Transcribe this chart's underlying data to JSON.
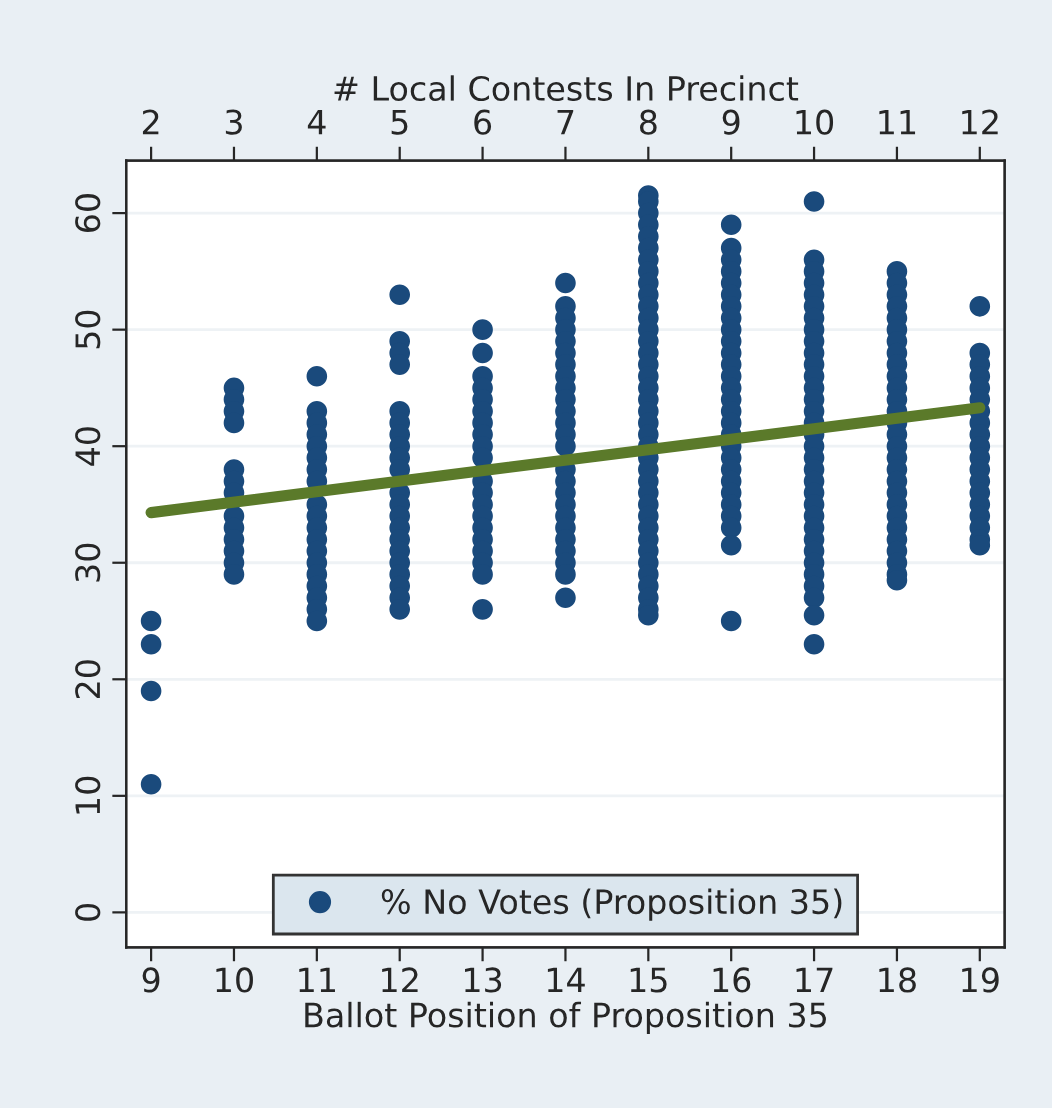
{
  "chart_data": {
    "type": "scatter",
    "xlabel": "Ballot Position of Proposition 35",
    "x2label": "# Local Contests In Precinct",
    "xlim": [
      8.7,
      19.3
    ],
    "xticks": [
      9,
      10,
      11,
      12,
      13,
      14,
      15,
      16,
      17,
      18,
      19
    ],
    "x2lim": [
      1.7,
      12.3
    ],
    "x2ticks": [
      2,
      3,
      4,
      5,
      6,
      7,
      8,
      9,
      10,
      11,
      12
    ],
    "ylim": [
      -3,
      64.5
    ],
    "yticks": [
      0,
      10,
      20,
      30,
      40,
      50,
      60
    ],
    "grid": "y",
    "legend": "bottom",
    "series": [
      {
        "name": "% No Votes (Proposition 35)",
        "marker": "circle",
        "color": "#1a4a7c",
        "x": [
          9,
          9,
          9,
          9,
          10,
          10,
          10,
          10,
          10,
          10,
          10,
          10,
          10,
          10,
          10,
          10,
          10,
          11,
          11,
          11,
          11,
          11,
          11,
          11,
          11,
          11,
          11,
          11,
          11,
          11,
          11,
          11,
          11,
          11,
          11,
          11,
          12,
          12,
          12,
          12,
          12,
          12,
          12,
          12,
          12,
          12,
          12,
          12,
          12,
          12,
          12,
          12,
          12,
          12,
          12,
          12,
          12,
          13,
          13,
          13,
          13,
          13,
          13,
          13,
          13,
          13,
          13,
          13,
          13,
          13,
          13,
          13,
          13,
          13,
          13,
          13,
          13,
          14,
          14,
          14,
          14,
          14,
          14,
          14,
          14,
          14,
          14,
          14,
          14,
          14,
          14,
          14,
          14,
          14,
          14,
          14,
          14,
          14,
          14,
          14,
          14,
          14,
          15,
          15,
          15,
          15,
          15,
          15,
          15,
          15,
          15,
          15,
          15,
          15,
          15,
          15,
          15,
          15,
          15,
          15,
          15,
          15,
          15,
          15,
          15,
          15,
          15,
          15,
          15,
          15,
          15,
          15,
          15,
          15,
          15,
          15,
          15,
          15,
          15,
          15,
          16,
          16,
          16,
          16,
          16,
          16,
          16,
          16,
          16,
          16,
          16,
          16,
          16,
          16,
          16,
          16,
          16,
          16,
          16,
          16,
          16,
          16,
          16,
          16,
          16,
          16,
          16,
          16,
          17,
          17,
          17,
          17,
          17,
          17,
          17,
          17,
          17,
          17,
          17,
          17,
          17,
          17,
          17,
          17,
          17,
          17,
          17,
          17,
          17,
          17,
          17,
          17,
          17,
          17,
          17,
          17,
          17,
          17,
          17,
          17,
          17,
          18,
          18,
          18,
          18,
          18,
          18,
          18,
          18,
          18,
          18,
          18,
          18,
          18,
          18,
          18,
          18,
          18,
          18,
          18,
          18,
          18,
          18,
          18,
          18,
          18,
          18,
          18,
          18,
          19,
          19,
          19,
          19,
          19,
          19,
          19,
          19,
          19,
          19,
          19,
          19,
          19,
          19,
          19,
          19,
          19,
          19,
          19
        ],
        "values": [
          25,
          23,
          19,
          11,
          45,
          44,
          43,
          42,
          38,
          37,
          36,
          34,
          33,
          32,
          31,
          30,
          29,
          46,
          43,
          42,
          41,
          40,
          39,
          38,
          37,
          35,
          34,
          33,
          32,
          31,
          30,
          29,
          28,
          27,
          26,
          25,
          53,
          49,
          48,
          47,
          43,
          42,
          41,
          40,
          39,
          38,
          36,
          35,
          34,
          33,
          32,
          31,
          30,
          29,
          28,
          27,
          26,
          50,
          48,
          46,
          45,
          44,
          43,
          42,
          41,
          40,
          39,
          37,
          36,
          35,
          34,
          33,
          32,
          31,
          30,
          29,
          26,
          54,
          52,
          51,
          50,
          49,
          48,
          47,
          46,
          45,
          44,
          43,
          42,
          41,
          40,
          38,
          37,
          36,
          35,
          34,
          33,
          32,
          31,
          30,
          29,
          27,
          61.5,
          61,
          60,
          59,
          58,
          57,
          56,
          55,
          54,
          53,
          52,
          51,
          50,
          49,
          48,
          47,
          46,
          45,
          44,
          43,
          42,
          41,
          40,
          39,
          38,
          37,
          36,
          35,
          34,
          33,
          32,
          31,
          30,
          29,
          28,
          27,
          26,
          25.5,
          59,
          57,
          56,
          55,
          54,
          53,
          52,
          51,
          50,
          49,
          48,
          47,
          46,
          45,
          44,
          43,
          42,
          41,
          40,
          39,
          38,
          37,
          36,
          35,
          34,
          33,
          31.5,
          25,
          61,
          56,
          55,
          54,
          53,
          52,
          51,
          50,
          49,
          48,
          47,
          46,
          45,
          44,
          43,
          42,
          41,
          40,
          39,
          38,
          37,
          36,
          35,
          34,
          33,
          32,
          31,
          30,
          29,
          28,
          27,
          25.5,
          23,
          55,
          54,
          53,
          52,
          51,
          50,
          49,
          48,
          47,
          46,
          45,
          44,
          43,
          42,
          41,
          40,
          39,
          38,
          37,
          36,
          35,
          34,
          33,
          32,
          31,
          30,
          29,
          28.5,
          52,
          48,
          47,
          46,
          45,
          44,
          43,
          42,
          41,
          40,
          39,
          38,
          37,
          36,
          35,
          34,
          33,
          32,
          31.5
        ]
      },
      {
        "type": "line",
        "marker": "none",
        "color": "#5b7a2a",
        "x": [
          9,
          19
        ],
        "values": [
          34.3,
          43.3
        ]
      }
    ]
  }
}
